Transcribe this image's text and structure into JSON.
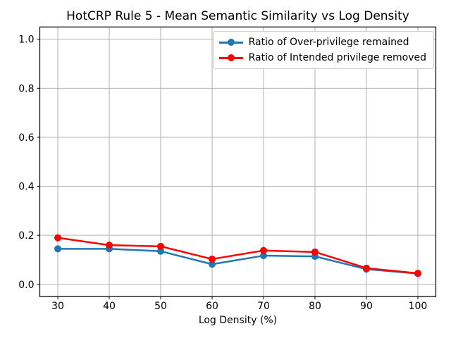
{
  "chart_data": {
    "type": "line",
    "title": "HotCRP Rule 5 - Mean Semantic Similarity vs Log Density",
    "xlabel": "Log Density (%)",
    "ylabel": "",
    "x": [
      30,
      40,
      50,
      60,
      70,
      80,
      90,
      100
    ],
    "xtick_labels": [
      "30",
      "40",
      "50",
      "60",
      "70",
      "80",
      "90",
      "100"
    ],
    "yticks": [
      0.0,
      0.2,
      0.4,
      0.6,
      0.8,
      1.0
    ],
    "ytick_labels": [
      "0.0",
      "0.2",
      "0.4",
      "0.6",
      "0.8",
      "1.0"
    ],
    "xlim": [
      26.5,
      103.5
    ],
    "ylim": [
      -0.05,
      1.05
    ],
    "grid": true,
    "legend_position": "upper right",
    "grid_color": "#b0b0b0",
    "series": [
      {
        "name": "Ratio of Over-privilege remained",
        "color": "#1f77b4",
        "values": [
          0.145,
          0.145,
          0.135,
          0.082,
          0.117,
          0.114,
          0.062,
          0.044
        ]
      },
      {
        "name": "Ratio of Intended privilege removed",
        "color": "#ff0000",
        "values": [
          0.19,
          0.16,
          0.155,
          0.103,
          0.138,
          0.132,
          0.066,
          0.045
        ]
      }
    ]
  }
}
